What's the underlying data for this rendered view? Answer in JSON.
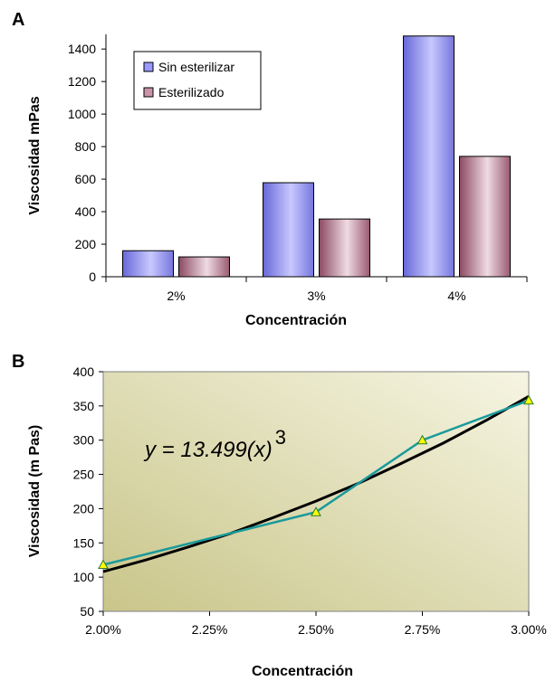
{
  "chart_data": [
    {
      "panel_label": "A",
      "type": "bar",
      "categories": [
        "2%",
        "3%",
        "4%"
      ],
      "series": [
        {
          "name": "Sin esterilizar",
          "values": [
            160,
            578,
            1480
          ],
          "color": "#9999ff"
        },
        {
          "name": "Esterilizado",
          "values": [
            122,
            355,
            740
          ],
          "color": "#c993a8"
        }
      ],
      "xlabel": "Concentración",
      "ylabel": "Viscosidad mPas",
      "ylim": [
        0,
        1400
      ],
      "yticks": [
        0,
        200,
        400,
        600,
        800,
        1000,
        1200,
        1400
      ],
      "grid": false,
      "legend_position": "top-left"
    },
    {
      "panel_label": "B",
      "type": "line",
      "series": [
        {
          "name": "",
          "x": [
            0.02,
            0.025,
            0.0275,
            0.03
          ],
          "y": [
            118,
            195,
            300,
            358
          ],
          "color": "#1a9a9a",
          "marker": "triangle",
          "marker_color": "#ffff00"
        },
        {
          "name": "",
          "x": [
            0.02,
            0.021,
            0.022,
            0.023,
            0.024,
            0.025,
            0.026,
            0.027,
            0.028,
            0.029,
            0.03
          ],
          "y": [
            108,
            125,
            144,
            164,
            187,
            211,
            237,
            266,
            296,
            329,
            364
          ],
          "color": "#000000"
        }
      ],
      "annotation": "y = 13.499(x)",
      "annotation_exponent": "3",
      "xlabel": "Concentración",
      "ylabel": "Viscosidad (m Pas)",
      "xlim": [
        0.02,
        0.03
      ],
      "xticks": [
        "2.00%",
        "2.25%",
        "2.50%",
        "2.75%",
        "3.00%"
      ],
      "ylim": [
        50,
        400
      ],
      "yticks": [
        50,
        100,
        150,
        200,
        250,
        300,
        350,
        400
      ],
      "plot_background": "#d9d7a5",
      "grid": false
    }
  ]
}
